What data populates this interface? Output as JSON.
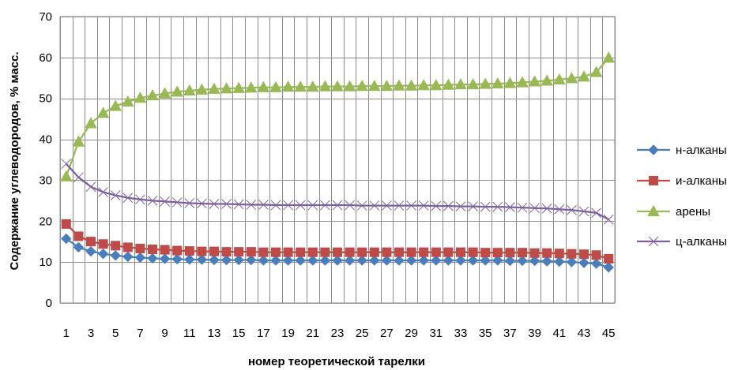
{
  "chart_data": {
    "type": "line",
    "xlabel": "номер теоретической тарелки",
    "ylabel": "Содержание углеводородов, % масс.",
    "ylim": [
      0,
      70
    ],
    "yticks": [
      0,
      10,
      20,
      30,
      40,
      50,
      60,
      70
    ],
    "xlim": [
      1,
      45
    ],
    "xtick_labels": [
      1,
      3,
      5,
      7,
      9,
      11,
      13,
      15,
      17,
      19,
      21,
      23,
      25,
      27,
      29,
      31,
      33,
      35,
      37,
      39,
      41,
      43,
      45
    ],
    "x": [
      1,
      2,
      3,
      4,
      5,
      6,
      7,
      8,
      9,
      10,
      11,
      12,
      13,
      14,
      15,
      16,
      17,
      18,
      19,
      20,
      21,
      22,
      23,
      24,
      25,
      26,
      27,
      28,
      29,
      30,
      31,
      32,
      33,
      34,
      35,
      36,
      37,
      38,
      39,
      40,
      41,
      42,
      43,
      44,
      45
    ],
    "grid": true,
    "legend_position": "right",
    "series": [
      {
        "name": "н-алканы",
        "color": "#4a7ebb",
        "marker": "diamond",
        "values": [
          15.7,
          13.6,
          12.6,
          12.0,
          11.6,
          11.3,
          11.1,
          10.9,
          10.8,
          10.7,
          10.6,
          10.6,
          10.5,
          10.5,
          10.5,
          10.5,
          10.4,
          10.4,
          10.4,
          10.4,
          10.4,
          10.4,
          10.4,
          10.4,
          10.4,
          10.4,
          10.4,
          10.4,
          10.4,
          10.4,
          10.4,
          10.4,
          10.4,
          10.4,
          10.4,
          10.4,
          10.3,
          10.3,
          10.3,
          10.2,
          10.1,
          10.0,
          9.8,
          9.6,
          8.7
        ]
      },
      {
        "name": "и-алканы",
        "color": "#be4b48",
        "marker": "square",
        "values": [
          19.3,
          16.3,
          15.0,
          14.4,
          14.0,
          13.6,
          13.3,
          13.1,
          13.0,
          12.8,
          12.7,
          12.6,
          12.6,
          12.5,
          12.5,
          12.5,
          12.4,
          12.4,
          12.4,
          12.4,
          12.4,
          12.4,
          12.4,
          12.4,
          12.4,
          12.4,
          12.4,
          12.4,
          12.4,
          12.4,
          12.4,
          12.4,
          12.4,
          12.4,
          12.3,
          12.3,
          12.3,
          12.3,
          12.2,
          12.2,
          12.1,
          12.0,
          11.9,
          11.7,
          10.8
        ]
      },
      {
        "name": "арены",
        "color": "#98b954",
        "marker": "triangle",
        "values": [
          30.9,
          39.4,
          43.9,
          46.4,
          48.1,
          49.2,
          50.1,
          50.7,
          51.2,
          51.6,
          51.9,
          52.1,
          52.3,
          52.4,
          52.5,
          52.6,
          52.7,
          52.7,
          52.8,
          52.8,
          52.8,
          52.9,
          52.9,
          52.9,
          53.0,
          53.0,
          53.0,
          53.1,
          53.1,
          53.2,
          53.2,
          53.3,
          53.4,
          53.4,
          53.5,
          53.6,
          53.7,
          53.9,
          54.1,
          54.3,
          54.6,
          54.9,
          55.3,
          56.4,
          59.9
        ]
      },
      {
        "name": "ц-алканы",
        "color": "#7e60a1",
        "marker": "x",
        "values": [
          34.0,
          30.7,
          28.4,
          27.1,
          26.3,
          25.7,
          25.3,
          25.0,
          24.8,
          24.6,
          24.4,
          24.3,
          24.2,
          24.2,
          24.1,
          24.0,
          24.0,
          23.9,
          23.9,
          23.9,
          23.9,
          23.9,
          23.9,
          23.9,
          23.8,
          23.8,
          23.8,
          23.8,
          23.8,
          23.8,
          23.7,
          23.7,
          23.6,
          23.6,
          23.5,
          23.5,
          23.4,
          23.3,
          23.2,
          23.1,
          22.9,
          22.7,
          22.4,
          22.0,
          20.4
        ]
      }
    ]
  }
}
